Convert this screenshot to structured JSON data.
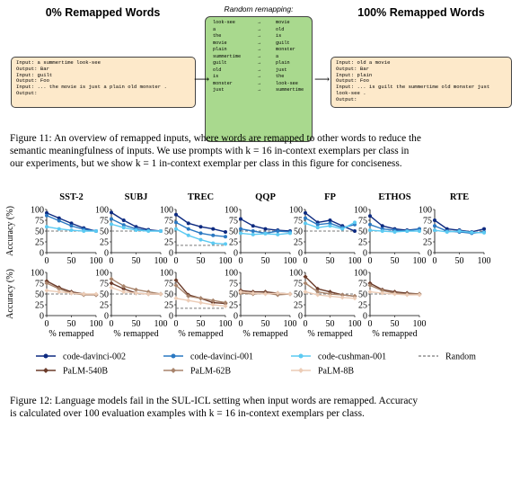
{
  "figure11": {
    "left_title": "0% Remapped Words",
    "left_lines": [
      "Input: a summertime look-see",
      "Output: Bar",
      "Input: guilt",
      "Output: Foo",
      "Input: ... the movie is just a plain old monster .",
      "Output:"
    ],
    "remap_title": "Random remapping:",
    "remap_rows": [
      {
        "from": "look-see",
        "to": "movie"
      },
      {
        "from": "a",
        "to": "old"
      },
      {
        "from": "the",
        "to": "is"
      },
      {
        "from": "movie",
        "to": "guilt"
      },
      {
        "from": "plain",
        "to": "monster"
      },
      {
        "from": "summertime",
        "to": "a"
      },
      {
        "from": "guilt",
        "to": "plain"
      },
      {
        "from": "old",
        "to": "just"
      },
      {
        "from": "is",
        "to": "the"
      },
      {
        "from": "monster",
        "to": "look-see"
      },
      {
        "from": "just",
        "to": "summertime"
      }
    ],
    "remap_arrow": "→",
    "right_title": "100% Remapped Words",
    "right_lines": [
      "Input: old a movie",
      "Output: Bar",
      "Input: plain",
      "Output: Foo",
      "Input: ... is guilt the summertime old monster just look-see .",
      "Output:"
    ],
    "caption_lines": [
      "Figure 11: An overview of remapped inputs, where words are remapped to other words to reduce the",
      "semantic meaningfulness of inputs. We use prompts with k = 16 in-context exemplars per class in",
      "our experiments, but we show k = 1 in-context exemplar per class in this figure for conciseness."
    ]
  },
  "figure12": {
    "caption_lines": [
      "Figure 12: Language models fail in the SUL-ICL setting when input words are remapped. Accuracy",
      "is calculated over 100 evaluation examples with k = 16 in-context exemplars per class."
    ]
  },
  "chart_data": {
    "type": "line",
    "ylabel": "Accuracy (%)",
    "xlabel": "% remapped",
    "x": [
      0,
      25,
      50,
      75,
      100
    ],
    "xticks": [
      0,
      50,
      100
    ],
    "yticks": [
      0,
      25,
      50,
      75,
      100
    ],
    "ylim": [
      0,
      100
    ],
    "xlim": [
      0,
      100
    ],
    "colors": {
      "code-davinci-002": "#0d2a80",
      "code-davinci-001": "#2a78c2",
      "code-cushman-001": "#5ccaf2",
      "PaLM-540B": "#6b3b2a",
      "PaLM-62B": "#a8846c",
      "PaLM-8B": "#ecccb6",
      "Random": "#7a7a7a"
    },
    "legend": {
      "placement": "bottom",
      "entries": [
        "code-davinci-002",
        "code-davinci-001",
        "code-cushman-001",
        "Random",
        "PaLM-540B",
        "PaLM-62B",
        "PaLM-8B"
      ]
    },
    "row1": [
      {
        "title": "SST-2",
        "random": 50,
        "series": [
          {
            "name": "code-davinci-002",
            "values": [
              92,
              80,
              68,
              57,
              50
            ]
          },
          {
            "name": "code-davinci-001",
            "values": [
              86,
              74,
              62,
              54,
              50
            ]
          },
          {
            "name": "code-cushman-001",
            "values": [
              60,
              55,
              52,
              50,
              50
            ]
          }
        ]
      },
      {
        "title": "SUBJ",
        "random": 50,
        "series": [
          {
            "name": "code-davinci-002",
            "values": [
              93,
              75,
              60,
              53,
              50
            ]
          },
          {
            "name": "code-davinci-001",
            "values": [
              78,
              64,
              55,
              51,
              50
            ]
          },
          {
            "name": "code-cushman-001",
            "values": [
              66,
              58,
              52,
              50,
              50
            ]
          }
        ]
      },
      {
        "title": "TREC",
        "random": 17,
        "series": [
          {
            "name": "code-davinci-002",
            "values": [
              88,
              68,
              60,
              55,
              48
            ]
          },
          {
            "name": "code-davinci-001",
            "values": [
              70,
              55,
              45,
              40,
              37
            ]
          },
          {
            "name": "code-cushman-001",
            "values": [
              55,
              40,
              30,
              22,
              20
            ]
          }
        ]
      },
      {
        "title": "QQP",
        "random": 50,
        "series": [
          {
            "name": "code-davinci-002",
            "values": [
              78,
              62,
              55,
              52,
              50
            ]
          },
          {
            "name": "code-davinci-001",
            "values": [
              55,
              50,
              45,
              50,
              48
            ]
          },
          {
            "name": "code-cushman-001",
            "values": [
              45,
              42,
              44,
              42,
              45
            ]
          }
        ]
      },
      {
        "title": "FP",
        "random": 50,
        "series": [
          {
            "name": "code-davinci-002",
            "values": [
              92,
              70,
              75,
              62,
              50
            ]
          },
          {
            "name": "code-davinci-001",
            "values": [
              80,
              65,
              68,
              58,
              65
            ]
          },
          {
            "name": "code-cushman-001",
            "values": [
              68,
              58,
              62,
              55,
              70
            ]
          }
        ]
      },
      {
        "title": "ETHOS",
        "random": 50,
        "series": [
          {
            "name": "code-davinci-002",
            "values": [
              85,
              62,
              55,
              52,
              55
            ]
          },
          {
            "name": "code-davinci-001",
            "values": [
              65,
              55,
              52,
              50,
              55
            ]
          },
          {
            "name": "code-cushman-001",
            "values": [
              52,
              50,
              48,
              50,
              50
            ]
          }
        ]
      },
      {
        "title": "RTE",
        "random": 50,
        "series": [
          {
            "name": "code-davinci-002",
            "values": [
              75,
              55,
              52,
              48,
              55
            ]
          },
          {
            "name": "code-davinci-001",
            "values": [
              62,
              50,
              48,
              45,
              48
            ]
          },
          {
            "name": "code-cushman-001",
            "values": [
              52,
              48,
              50,
              47,
              46
            ]
          }
        ]
      }
    ],
    "row2": [
      {
        "random": 50,
        "series": [
          {
            "name": "PaLM-540B",
            "values": [
              80,
              65,
              55,
              50,
              48
            ]
          },
          {
            "name": "PaLM-62B",
            "values": [
              75,
              62,
              52,
              48,
              48
            ]
          },
          {
            "name": "PaLM-8B",
            "values": [
              58,
              55,
              52,
              50,
              50
            ]
          }
        ]
      },
      {
        "random": 50,
        "series": [
          {
            "name": "PaLM-540B",
            "values": [
              75,
              62,
              52,
              50,
              50
            ]
          },
          {
            "name": "PaLM-62B",
            "values": [
              85,
              68,
              60,
              55,
              50
            ]
          },
          {
            "name": "PaLM-8B",
            "values": [
              65,
              55,
              52,
              50,
              50
            ]
          }
        ]
      },
      {
        "random": 17,
        "series": [
          {
            "name": "PaLM-540B",
            "values": [
              82,
              48,
              40,
              30,
              28
            ]
          },
          {
            "name": "PaLM-62B",
            "values": [
              70,
              45,
              40,
              35,
              30
            ]
          },
          {
            "name": "PaLM-8B",
            "values": [
              40,
              35,
              30,
              25,
              22
            ]
          }
        ]
      },
      {
        "random": 50,
        "series": [
          {
            "name": "PaLM-540B",
            "values": [
              58,
              55,
              55,
              52,
              50
            ]
          },
          {
            "name": "PaLM-62B",
            "values": [
              52,
              50,
              52,
              48,
              50
            ]
          },
          {
            "name": "PaLM-8B",
            "values": [
              55,
              52,
              50,
              52,
              50
            ]
          }
        ]
      },
      {
        "random": 50,
        "series": [
          {
            "name": "PaLM-540B",
            "values": [
              90,
              62,
              55,
              48,
              45
            ]
          },
          {
            "name": "PaLM-62B",
            "values": [
              75,
              55,
              50,
              48,
              45
            ]
          },
          {
            "name": "PaLM-8B",
            "values": [
              55,
              48,
              45,
              42,
              40
            ]
          }
        ]
      },
      {
        "random": 50,
        "series": [
          {
            "name": "PaLM-540B",
            "values": [
              75,
              60,
              55,
              52,
              50
            ]
          },
          {
            "name": "PaLM-62B",
            "values": [
              70,
              58,
              52,
              50,
              50
            ]
          },
          {
            "name": "PaLM-8B",
            "values": [
              55,
              52,
              50,
              48,
              48
            ]
          }
        ]
      }
    ]
  }
}
